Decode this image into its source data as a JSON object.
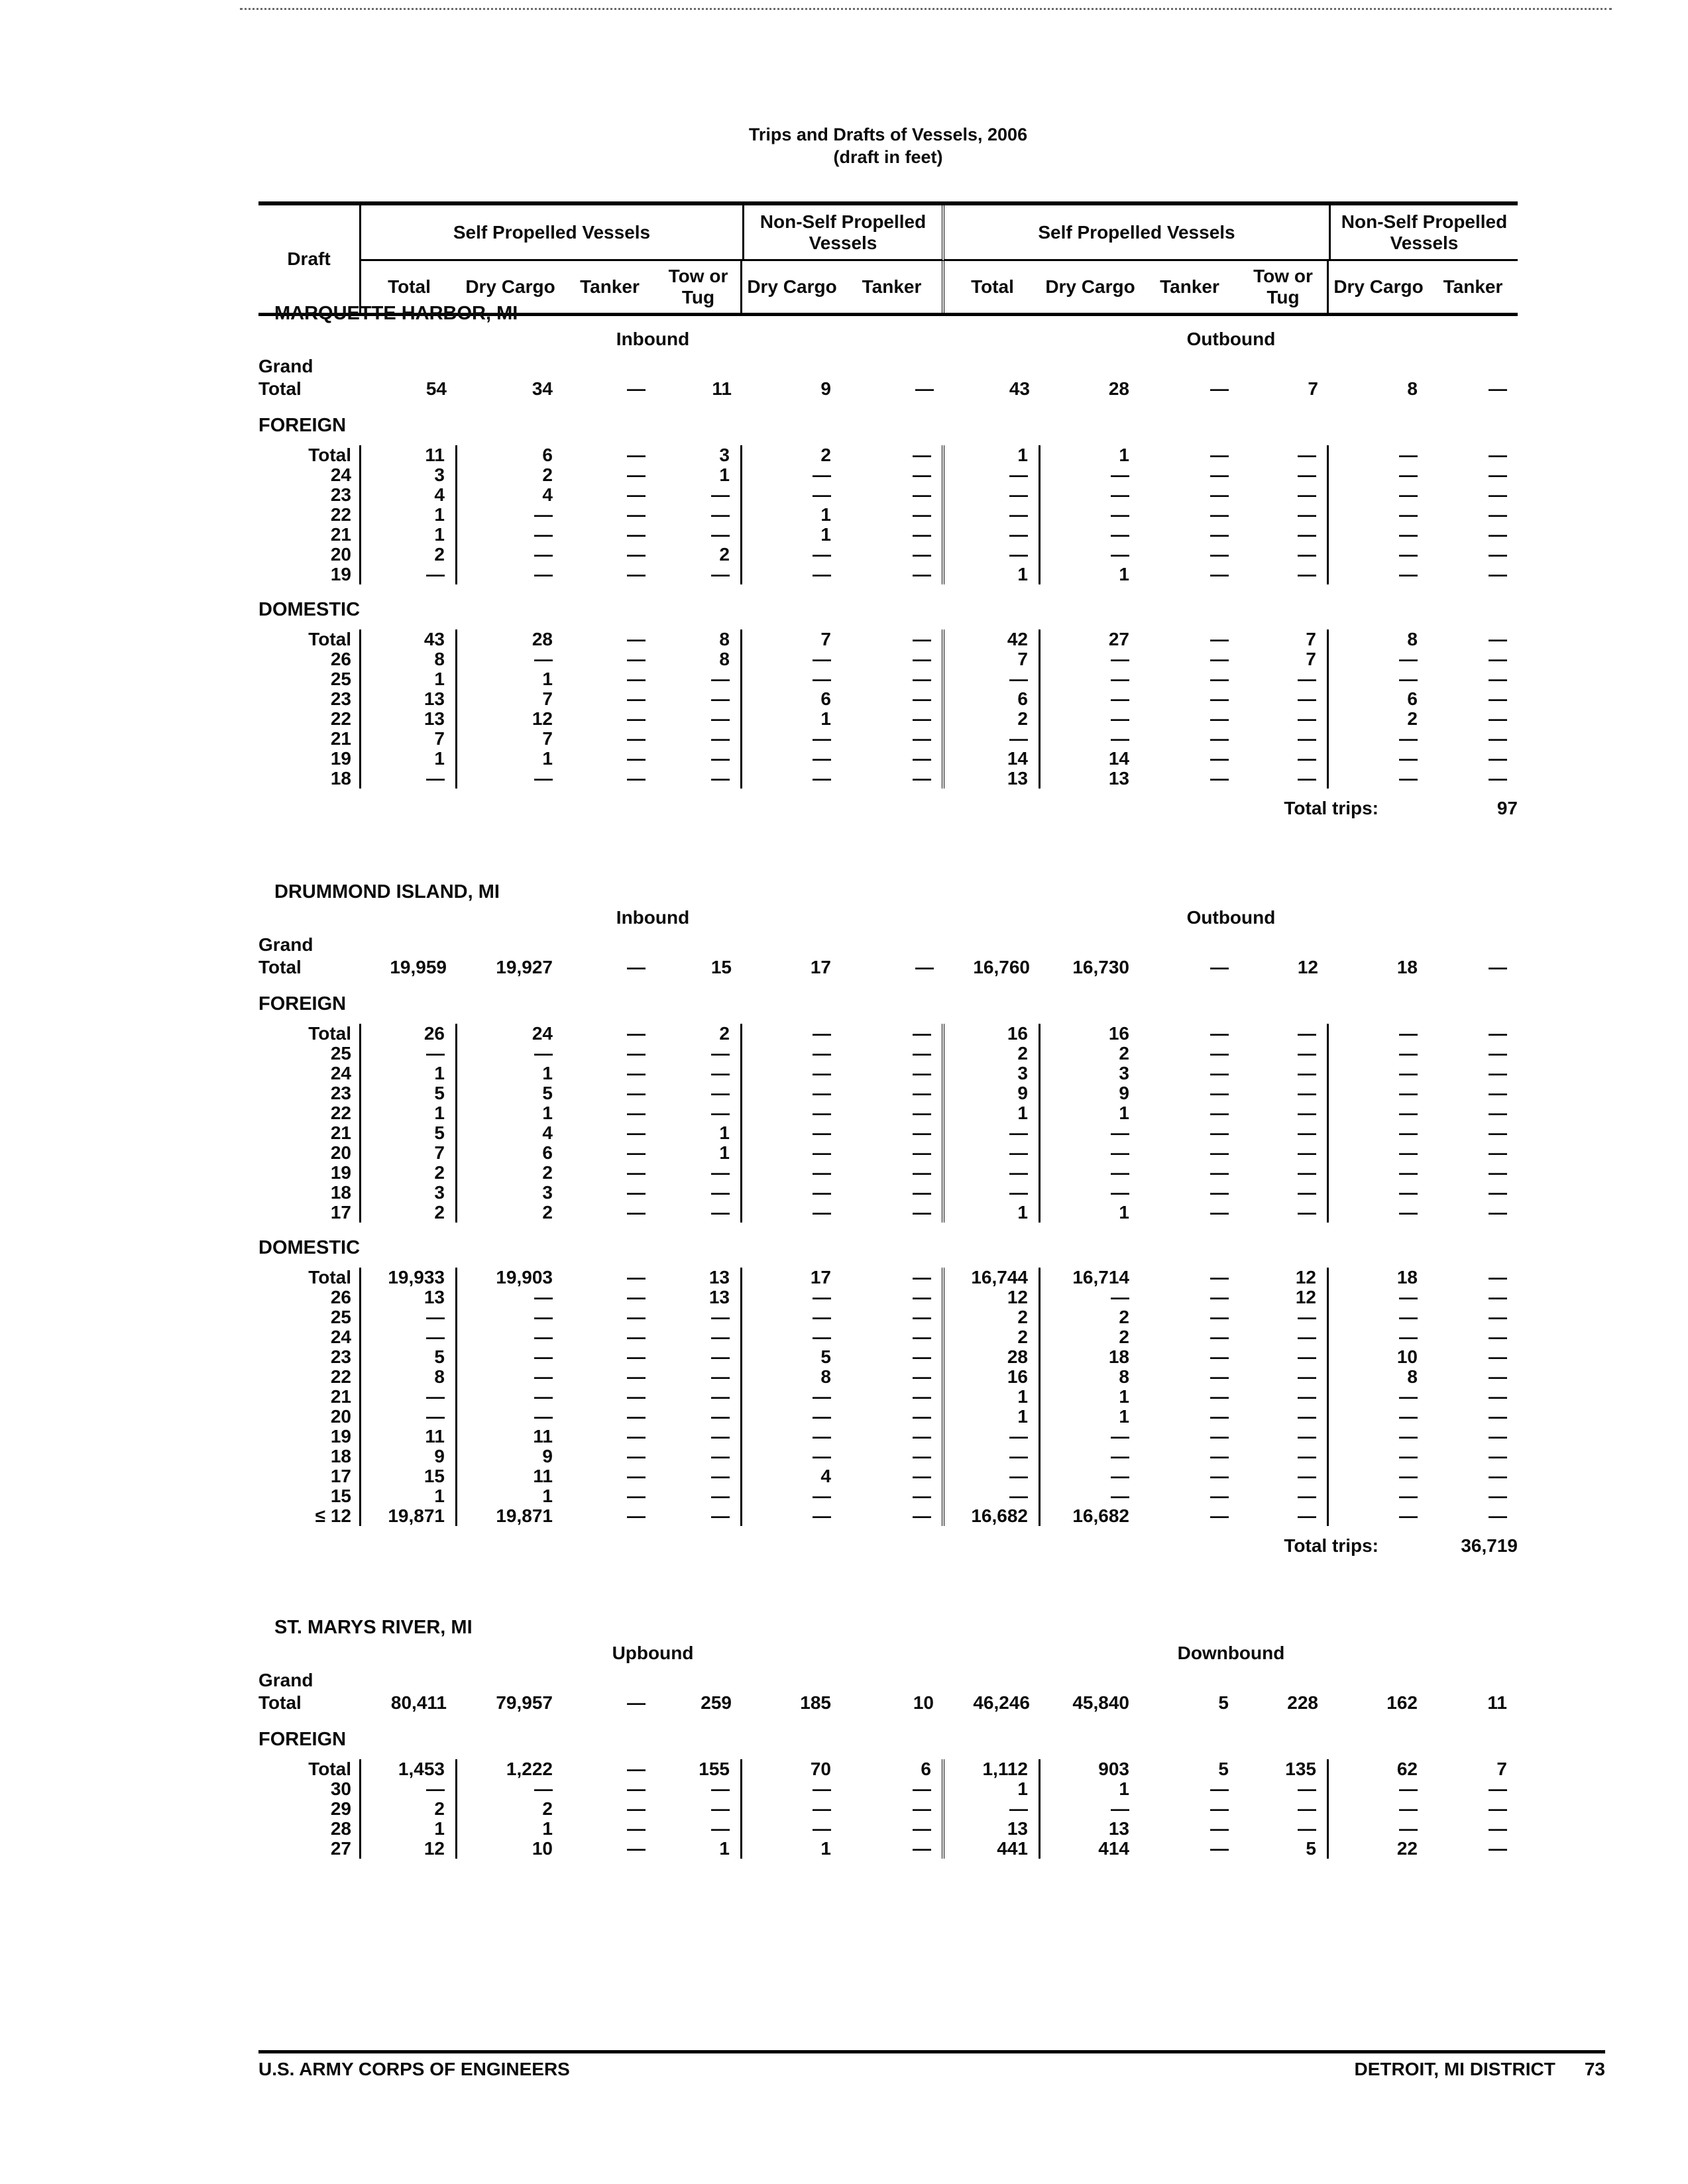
{
  "page": {
    "title": "Trips and Drafts of Vessels, 2006",
    "subtitle": "(draft in feet)",
    "footer_left": "U.S. ARMY CORPS OF ENGINEERS",
    "footer_right": "DETROIT, MI DISTRICT",
    "page_number": "73"
  },
  "table_header": {
    "draft_label": "Draft",
    "group_self_propelled": "Self Propelled Vessels",
    "group_non_self_propelled": "Non-Self Propelled Vessels",
    "columns": [
      "Total",
      "Dry Cargo",
      "Tanker",
      "Tow or Tug",
      "Dry Cargo",
      "Tanker"
    ]
  },
  "sections": [
    {
      "title": "MARQUETTE HARBOR, MI",
      "slug": "marquette-harbor-mi",
      "direction_left": "Inbound",
      "direction_right": "Outbound",
      "grand_label": "Grand\nTotal",
      "grand_values": [
        "54",
        "34",
        "—",
        "11",
        "9",
        "—",
        "43",
        "28",
        "—",
        "7",
        "8",
        "—"
      ],
      "blocks": [
        {
          "label": "FOREIGN",
          "rows": [
            {
              "draft": "Total",
              "values": [
                "11",
                "6",
                "—",
                "3",
                "2",
                "—",
                "1",
                "1",
                "—",
                "—",
                "—",
                "—"
              ]
            },
            {
              "draft": "24",
              "values": [
                "3",
                "2",
                "—",
                "1",
                "—",
                "—",
                "—",
                "—",
                "—",
                "—",
                "—",
                "—"
              ]
            },
            {
              "draft": "23",
              "values": [
                "4",
                "4",
                "—",
                "—",
                "—",
                "—",
                "—",
                "—",
                "—",
                "—",
                "—",
                "—"
              ]
            },
            {
              "draft": "22",
              "values": [
                "1",
                "—",
                "—",
                "—",
                "1",
                "—",
                "—",
                "—",
                "—",
                "—",
                "—",
                "—"
              ]
            },
            {
              "draft": "21",
              "values": [
                "1",
                "—",
                "—",
                "—",
                "1",
                "—",
                "—",
                "—",
                "—",
                "—",
                "—",
                "—"
              ]
            },
            {
              "draft": "20",
              "values": [
                "2",
                "—",
                "—",
                "2",
                "—",
                "—",
                "—",
                "—",
                "—",
                "—",
                "—",
                "—"
              ]
            },
            {
              "draft": "19",
              "values": [
                "—",
                "—",
                "—",
                "—",
                "—",
                "—",
                "1",
                "1",
                "—",
                "—",
                "—",
                "—"
              ]
            }
          ]
        },
        {
          "label": "DOMESTIC",
          "rows": [
            {
              "draft": "Total",
              "values": [
                "43",
                "28",
                "—",
                "8",
                "7",
                "—",
                "42",
                "27",
                "—",
                "7",
                "8",
                "—"
              ]
            },
            {
              "draft": "26",
              "values": [
                "8",
                "—",
                "—",
                "8",
                "—",
                "—",
                "7",
                "—",
                "—",
                "7",
                "—",
                "—"
              ]
            },
            {
              "draft": "25",
              "values": [
                "1",
                "1",
                "—",
                "—",
                "—",
                "—",
                "—",
                "—",
                "—",
                "—",
                "—",
                "—"
              ]
            },
            {
              "draft": "23",
              "values": [
                "13",
                "7",
                "—",
                "—",
                "6",
                "—",
                "6",
                "—",
                "—",
                "—",
                "6",
                "—"
              ]
            },
            {
              "draft": "22",
              "values": [
                "13",
                "12",
                "—",
                "—",
                "1",
                "—",
                "2",
                "—",
                "—",
                "—",
                "2",
                "—"
              ]
            },
            {
              "draft": "21",
              "values": [
                "7",
                "7",
                "—",
                "—",
                "—",
                "—",
                "—",
                "—",
                "—",
                "—",
                "—",
                "—"
              ]
            },
            {
              "draft": "19",
              "values": [
                "1",
                "1",
                "—",
                "—",
                "—",
                "—",
                "14",
                "14",
                "—",
                "—",
                "—",
                "—"
              ]
            },
            {
              "draft": "18",
              "values": [
                "—",
                "—",
                "—",
                "—",
                "—",
                "—",
                "13",
                "13",
                "—",
                "—",
                "—",
                "—"
              ]
            }
          ]
        }
      ],
      "total_trips_label": "Total trips:",
      "total_trips": "97"
    },
    {
      "title": "DRUMMOND ISLAND, MI",
      "slug": "drummond-island-mi",
      "direction_left": "Inbound",
      "direction_right": "Outbound",
      "grand_label": "Grand\nTotal",
      "grand_values": [
        "19,959",
        "19,927",
        "—",
        "15",
        "17",
        "—",
        "16,760",
        "16,730",
        "—",
        "12",
        "18",
        "—"
      ],
      "blocks": [
        {
          "label": "FOREIGN",
          "rows": [
            {
              "draft": "Total",
              "values": [
                "26",
                "24",
                "—",
                "2",
                "—",
                "—",
                "16",
                "16",
                "—",
                "—",
                "—",
                "—"
              ]
            },
            {
              "draft": "25",
              "values": [
                "—",
                "—",
                "—",
                "—",
                "—",
                "—",
                "2",
                "2",
                "—",
                "—",
                "—",
                "—"
              ]
            },
            {
              "draft": "24",
              "values": [
                "1",
                "1",
                "—",
                "—",
                "—",
                "—",
                "3",
                "3",
                "—",
                "—",
                "—",
                "—"
              ]
            },
            {
              "draft": "23",
              "values": [
                "5",
                "5",
                "—",
                "—",
                "—",
                "—",
                "9",
                "9",
                "—",
                "—",
                "—",
                "—"
              ]
            },
            {
              "draft": "22",
              "values": [
                "1",
                "1",
                "—",
                "—",
                "—",
                "—",
                "1",
                "1",
                "—",
                "—",
                "—",
                "—"
              ]
            },
            {
              "draft": "21",
              "values": [
                "5",
                "4",
                "—",
                "1",
                "—",
                "—",
                "—",
                "—",
                "—",
                "—",
                "—",
                "—"
              ]
            },
            {
              "draft": "20",
              "values": [
                "7",
                "6",
                "—",
                "1",
                "—",
                "—",
                "—",
                "—",
                "—",
                "—",
                "—",
                "—"
              ]
            },
            {
              "draft": "19",
              "values": [
                "2",
                "2",
                "—",
                "—",
                "—",
                "—",
                "—",
                "—",
                "—",
                "—",
                "—",
                "—"
              ]
            },
            {
              "draft": "18",
              "values": [
                "3",
                "3",
                "—",
                "—",
                "—",
                "—",
                "—",
                "—",
                "—",
                "—",
                "—",
                "—"
              ]
            },
            {
              "draft": "17",
              "values": [
                "2",
                "2",
                "—",
                "—",
                "—",
                "—",
                "1",
                "1",
                "—",
                "—",
                "—",
                "—"
              ]
            }
          ]
        },
        {
          "label": "DOMESTIC",
          "rows": [
            {
              "draft": "Total",
              "values": [
                "19,933",
                "19,903",
                "—",
                "13",
                "17",
                "—",
                "16,744",
                "16,714",
                "—",
                "12",
                "18",
                "—"
              ]
            },
            {
              "draft": "26",
              "values": [
                "13",
                "—",
                "—",
                "13",
                "—",
                "—",
                "12",
                "—",
                "—",
                "12",
                "—",
                "—"
              ]
            },
            {
              "draft": "25",
              "values": [
                "—",
                "—",
                "—",
                "—",
                "—",
                "—",
                "2",
                "2",
                "—",
                "—",
                "—",
                "—"
              ]
            },
            {
              "draft": "24",
              "values": [
                "—",
                "—",
                "—",
                "—",
                "—",
                "—",
                "2",
                "2",
                "—",
                "—",
                "—",
                "—"
              ]
            },
            {
              "draft": "23",
              "values": [
                "5",
                "—",
                "—",
                "—",
                "5",
                "—",
                "28",
                "18",
                "—",
                "—",
                "10",
                "—"
              ]
            },
            {
              "draft": "22",
              "values": [
                "8",
                "—",
                "—",
                "—",
                "8",
                "—",
                "16",
                "8",
                "—",
                "—",
                "8",
                "—"
              ]
            },
            {
              "draft": "21",
              "values": [
                "—",
                "—",
                "—",
                "—",
                "—",
                "—",
                "1",
                "1",
                "—",
                "—",
                "—",
                "—"
              ]
            },
            {
              "draft": "20",
              "values": [
                "—",
                "—",
                "—",
                "—",
                "—",
                "—",
                "1",
                "1",
                "—",
                "—",
                "—",
                "—"
              ]
            },
            {
              "draft": "19",
              "values": [
                "11",
                "11",
                "—",
                "—",
                "—",
                "—",
                "—",
                "—",
                "—",
                "—",
                "—",
                "—"
              ]
            },
            {
              "draft": "18",
              "values": [
                "9",
                "9",
                "—",
                "—",
                "—",
                "—",
                "—",
                "—",
                "—",
                "—",
                "—",
                "—"
              ]
            },
            {
              "draft": "17",
              "values": [
                "15",
                "11",
                "—",
                "—",
                "4",
                "—",
                "—",
                "—",
                "—",
                "—",
                "—",
                "—"
              ]
            },
            {
              "draft": "15",
              "values": [
                "1",
                "1",
                "—",
                "—",
                "—",
                "—",
                "—",
                "—",
                "—",
                "—",
                "—",
                "—"
              ]
            },
            {
              "draft": "≤ 12",
              "values": [
                "19,871",
                "19,871",
                "—",
                "—",
                "—",
                "—",
                "16,682",
                "16,682",
                "—",
                "—",
                "—",
                "—"
              ]
            }
          ]
        }
      ],
      "total_trips_label": "Total trips:",
      "total_trips": "36,719"
    },
    {
      "title": "ST. MARYS RIVER, MI",
      "slug": "st-marys-river-mi",
      "direction_left": "Upbound",
      "direction_right": "Downbound",
      "grand_label": "Grand\nTotal",
      "grand_values": [
        "80,411",
        "79,957",
        "—",
        "259",
        "185",
        "10",
        "46,246",
        "45,840",
        "5",
        "228",
        "162",
        "11"
      ],
      "blocks": [
        {
          "label": "FOREIGN",
          "rows": [
            {
              "draft": "Total",
              "values": [
                "1,453",
                "1,222",
                "—",
                "155",
                "70",
                "6",
                "1,112",
                "903",
                "5",
                "135",
                "62",
                "7"
              ]
            },
            {
              "draft": "30",
              "values": [
                "—",
                "—",
                "—",
                "—",
                "—",
                "—",
                "1",
                "1",
                "—",
                "—",
                "—",
                "—"
              ]
            },
            {
              "draft": "29",
              "values": [
                "2",
                "2",
                "—",
                "—",
                "—",
                "—",
                "—",
                "—",
                "—",
                "—",
                "—",
                "—"
              ]
            },
            {
              "draft": "28",
              "values": [
                "1",
                "1",
                "—",
                "—",
                "—",
                "—",
                "13",
                "13",
                "—",
                "—",
                "—",
                "—"
              ]
            },
            {
              "draft": "27",
              "values": [
                "12",
                "10",
                "—",
                "1",
                "1",
                "—",
                "441",
                "414",
                "—",
                "5",
                "22",
                "—"
              ]
            }
          ]
        }
      ]
    }
  ]
}
